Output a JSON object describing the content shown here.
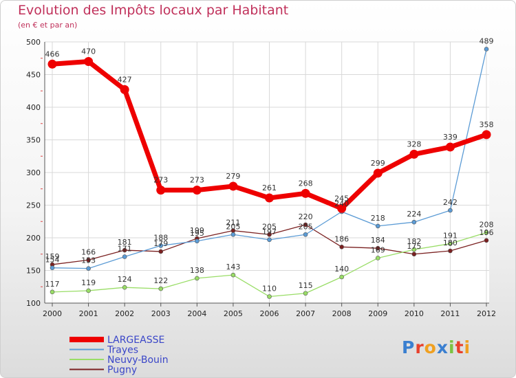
{
  "chart_data": {
    "type": "line",
    "title": "Evolution des Impôts locaux par Habitant",
    "subtitle": "(en € et par an)",
    "x": [
      "2000",
      "2001",
      "2002",
      "2003",
      "2004",
      "2005",
      "2006",
      "2007",
      "2008",
      "2009",
      "2010",
      "2011",
      "2012"
    ],
    "ylim": [
      100,
      500
    ],
    "yticks": [
      100,
      150,
      200,
      250,
      300,
      350,
      400,
      450,
      500
    ],
    "series": [
      {
        "name": "LARGEASSE",
        "color": "#ee0000",
        "values": [
          466,
          470,
          427,
          273,
          273,
          279,
          261,
          268,
          245,
          299,
          328,
          339,
          358
        ]
      },
      {
        "name": "Trayes",
        "color": "#5b9bd5",
        "values": [
          154,
          153,
          171,
          188,
          195,
          205,
          197,
          205,
          240,
          218,
          224,
          242,
          489
        ]
      },
      {
        "name": "Neuvy-Bouin",
        "color": "#99dd66",
        "values": [
          117,
          119,
          124,
          122,
          138,
          143,
          110,
          115,
          140,
          169,
          182,
          191,
          208
        ]
      },
      {
        "name": "Pugny",
        "color": "#7a2020",
        "values": [
          159,
          166,
          181,
          179,
          199,
          211,
          205,
          220,
          186,
          184,
          175,
          180,
          196
        ]
      }
    ]
  },
  "logo": {
    "letters": [
      "P",
      "r",
      "o",
      "x",
      "i",
      "t",
      "i"
    ],
    "colors": [
      "#3a7fd0",
      "#e8412c",
      "#f0a020",
      "#3a7fd0",
      "#7cc242",
      "#e8412c",
      "#f0a020"
    ]
  }
}
